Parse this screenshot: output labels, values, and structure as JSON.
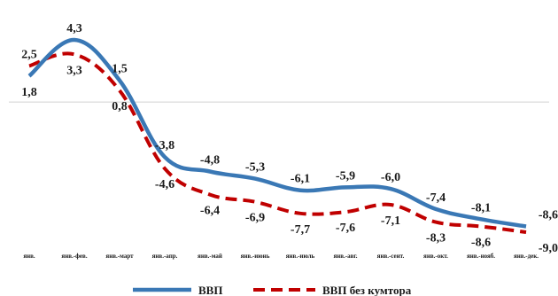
{
  "chart_data": {
    "type": "line",
    "categories": [
      "янв.",
      "янв.-фев.",
      "янв.-март",
      "янв.-апр.",
      "янв.-май",
      "янв.-июнь",
      "янв.-июль",
      "янв.-авг.",
      "янв.-сент.",
      "янв.-окт.",
      "янв.-нояб.",
      "янв.-дек."
    ],
    "series": [
      {
        "name": "ВВП",
        "color": "#3a78b5",
        "style": "solid",
        "values": [
          1.8,
          4.3,
          1.5,
          -3.8,
          -4.8,
          -5.3,
          -6.1,
          -5.9,
          -6.0,
          -7.4,
          -8.1,
          -8.6
        ],
        "labels": [
          "1,8",
          "4,3",
          "1,5",
          "-3,8",
          "-4,8",
          "-5,3",
          "-6,1",
          "-5,9",
          "-6,0",
          "-7,4",
          "-8,1",
          "-8,6"
        ]
      },
      {
        "name": "ВВП без кумтора",
        "color": "#c00000",
        "style": "dashed",
        "values": [
          2.5,
          3.3,
          0.8,
          -4.6,
          -6.4,
          -6.9,
          -7.7,
          -7.6,
          -7.1,
          -8.3,
          -8.6,
          -9.0
        ],
        "labels": [
          "2,5",
          "3,3",
          "0,8",
          "-4,6",
          "-6,4",
          "-6,9",
          "-7,7",
          "-7,6",
          "-7,1",
          "-8,3",
          "-8,6",
          "-9,0"
        ]
      }
    ],
    "ylim": [
      -10,
      6
    ],
    "grid": false,
    "zero_line": true,
    "legend_position": "bottom"
  }
}
